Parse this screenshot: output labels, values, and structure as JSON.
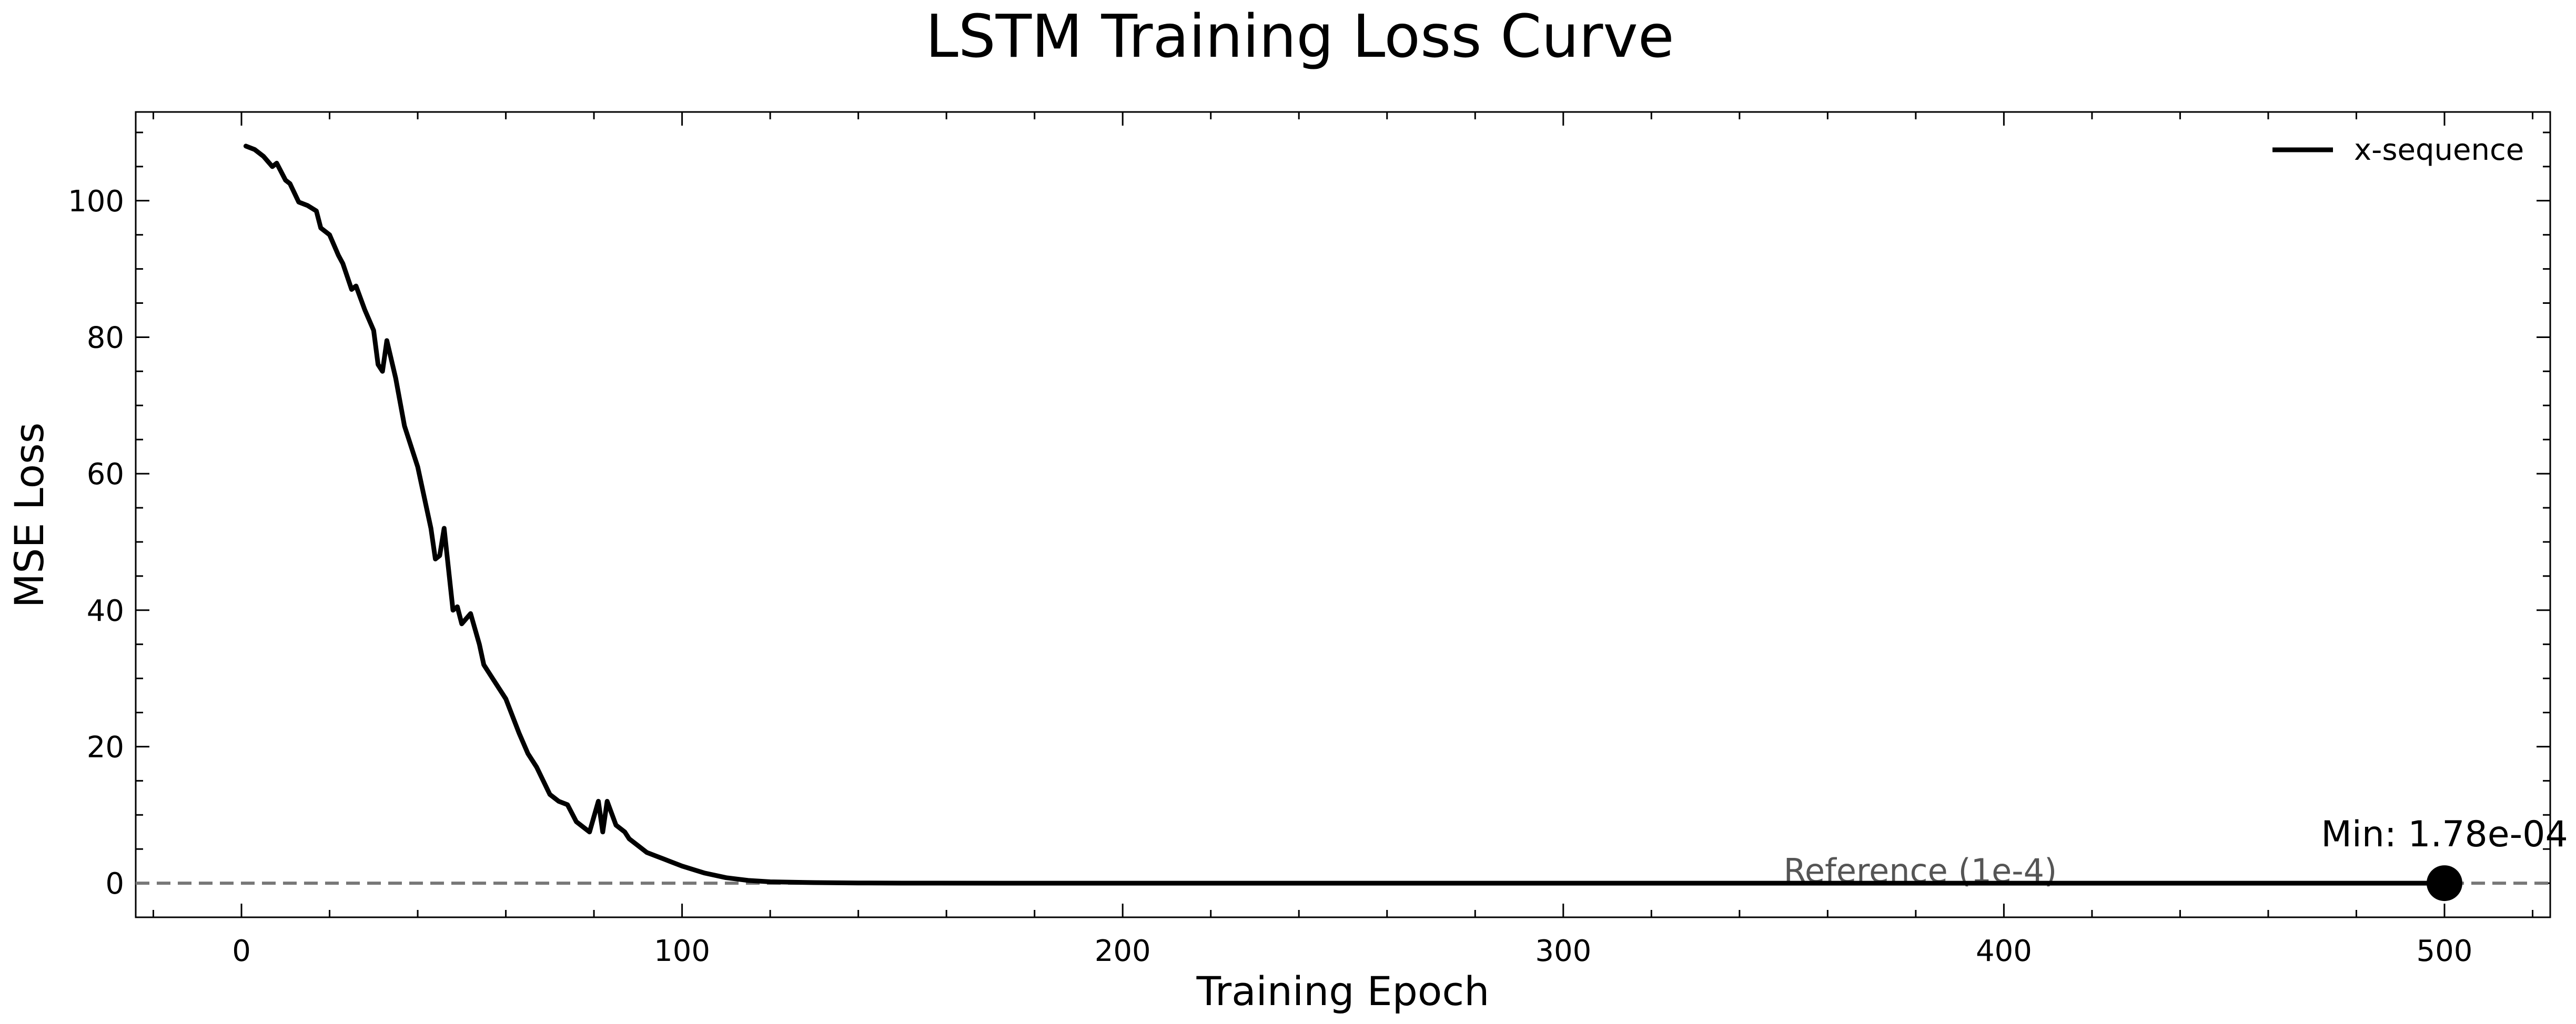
{
  "chart_data": {
    "type": "line",
    "title": "LSTM Training Loss Curve",
    "xlabel": "Training Epoch",
    "ylabel": "MSE Loss",
    "xlim": [
      -24,
      524
    ],
    "ylim": [
      -5,
      113
    ],
    "xticks": [
      0,
      100,
      200,
      300,
      400,
      500
    ],
    "xticks_minor_step": 20,
    "yticks": [
      0,
      20,
      40,
      60,
      80,
      100
    ],
    "yticks_minor_step": 5,
    "grid": false,
    "legend": {
      "placement": "top-right",
      "entries": [
        "x-sequence"
      ]
    },
    "series": [
      {
        "name": "x-sequence",
        "color": "#000000",
        "x": [
          1,
          3,
          5,
          7,
          8,
          10,
          11,
          13,
          15,
          17,
          18,
          20,
          22,
          23,
          25,
          26,
          28,
          30,
          31,
          32,
          33,
          35,
          37,
          40,
          42,
          43,
          44,
          45,
          46,
          48,
          49,
          50,
          52,
          54,
          55,
          57,
          60,
          63,
          65,
          67,
          70,
          72,
          74,
          76,
          78,
          79,
          81,
          82,
          83,
          85,
          87,
          88,
          90,
          92,
          94,
          96,
          100,
          105,
          110,
          115,
          120,
          130,
          140,
          150,
          175,
          200,
          250,
          300,
          350,
          400,
          450,
          500
        ],
        "y": [
          108,
          107.5,
          106.5,
          105,
          105.5,
          103,
          102.5,
          99.8,
          99.3,
          98.5,
          96,
          95,
          92,
          90.8,
          87,
          87.5,
          84,
          81,
          76,
          75,
          79.5,
          74,
          67,
          61,
          55,
          52,
          47.5,
          48,
          52,
          40,
          40.5,
          38,
          39.5,
          35,
          32,
          30,
          27,
          22,
          19,
          17,
          13,
          12,
          11.5,
          9,
          8,
          7.5,
          12,
          7.5,
          12,
          8.5,
          7.5,
          6.5,
          5.5,
          4.5,
          4,
          3.5,
          2.5,
          1.5,
          0.8,
          0.4,
          0.2,
          0.08,
          0.03,
          0.01,
          0.002,
          0.001,
          0.0005,
          0.0003,
          0.0002,
          0.00019,
          0.00018,
          0.000178
        ]
      }
    ],
    "reference_line": {
      "y": 0.0001,
      "label": "Reference (1e-4)",
      "color": "#777777",
      "style": "dashed",
      "label_x": 350
    },
    "min_marker": {
      "x": 500,
      "y": 0.000178,
      "label": "Min: 1.78e-04"
    }
  }
}
